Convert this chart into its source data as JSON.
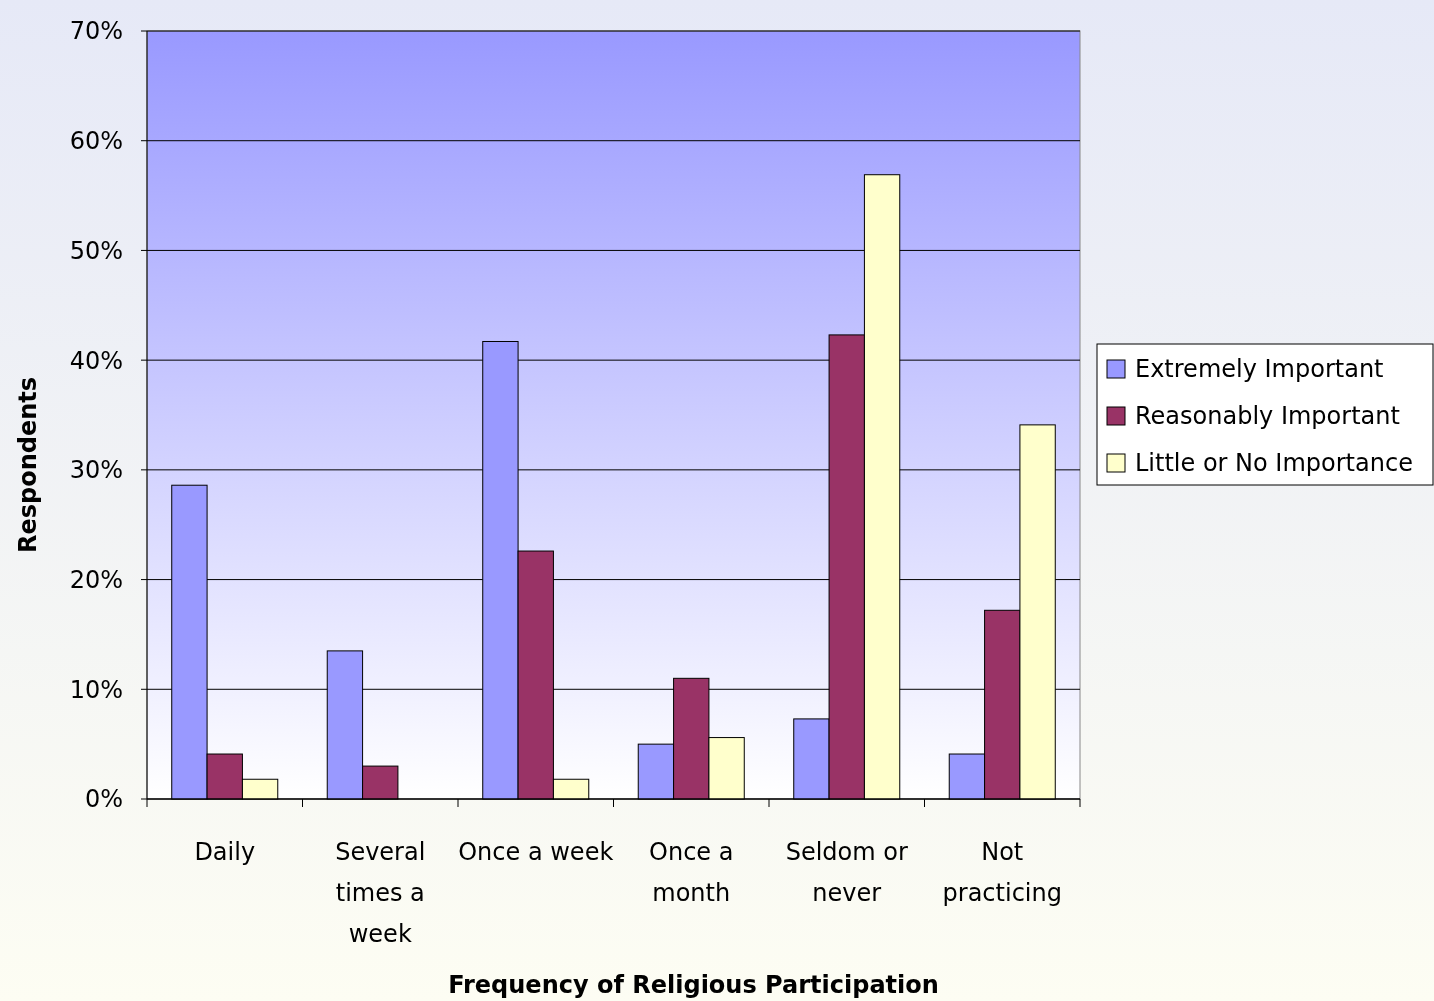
{
  "chart_data": {
    "type": "bar",
    "xlabel": "Frequency of Religious Participation",
    "ylabel": "Respondents",
    "categories": [
      "Daily",
      "Several times a week",
      "Once a week",
      "Once a month",
      "Seldom or never",
      "Not practicing"
    ],
    "series": [
      {
        "name": "Extremely Important",
        "color": "#9999ff",
        "values": [
          28.6,
          13.5,
          41.7,
          5.0,
          7.3,
          4.1
        ]
      },
      {
        "name": "Reasonably Important",
        "color": "#993366",
        "values": [
          4.1,
          3.0,
          22.6,
          11.0,
          42.3,
          17.2
        ]
      },
      {
        "name": "Little or No Importance",
        "color": "#ffffcc",
        "values": [
          1.8,
          0,
          1.8,
          5.6,
          56.9,
          34.1
        ]
      }
    ],
    "ylim": [
      0,
      70
    ],
    "yticks": [
      {
        "value": 0,
        "label": "0%"
      },
      {
        "value": 10,
        "label": "10%"
      },
      {
        "value": 20,
        "label": "20%"
      },
      {
        "value": 30,
        "label": "30%"
      },
      {
        "value": 40,
        "label": "40%"
      },
      {
        "value": 50,
        "label": "50%"
      },
      {
        "value": 60,
        "label": "60%"
      },
      {
        "value": 70,
        "label": "70%"
      }
    ],
    "grid": "y",
    "legend": "right"
  }
}
